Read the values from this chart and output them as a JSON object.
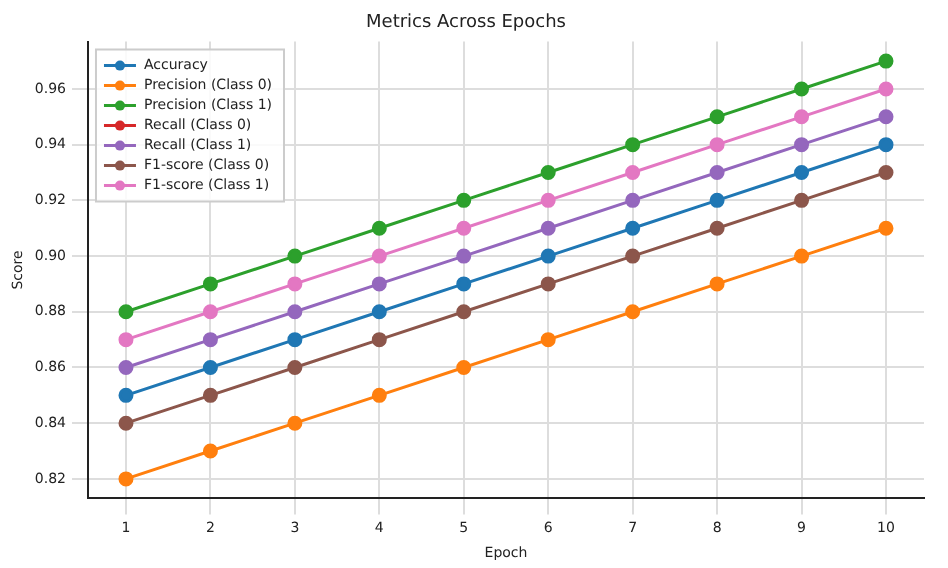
{
  "chart_data": {
    "type": "line",
    "title": "Metrics Across Epochs",
    "xlabel": "Epoch",
    "ylabel": "Score",
    "x": [
      1,
      2,
      3,
      4,
      5,
      6,
      7,
      8,
      9,
      10
    ],
    "xlim": [
      0.55,
      10.45
    ],
    "xticks": [
      1,
      2,
      3,
      4,
      5,
      6,
      7,
      8,
      9,
      10
    ],
    "ylim": [
      0.813,
      0.977
    ],
    "yticks": [
      0.82,
      0.84,
      0.86,
      0.88,
      {
        "value": 0.9,
        "label": "0.90"
      },
      0.92,
      0.94,
      0.96
    ],
    "grid": true,
    "legend": "top left",
    "marker": "circle",
    "line_style": "solid",
    "series": [
      {
        "name": "Accuracy",
        "color": "#1f77b4",
        "values": [
          0.85,
          0.86,
          0.87,
          0.88,
          0.89,
          0.9,
          0.91,
          0.92,
          0.93,
          0.94
        ]
      },
      {
        "name": "Precision (Class 0)",
        "color": "#ff7f0e",
        "values": [
          0.82,
          0.83,
          0.84,
          0.85,
          0.86,
          0.87,
          0.88,
          0.89,
          0.9,
          0.91
        ]
      },
      {
        "name": "Precision (Class 1)",
        "color": "#2ca02c",
        "values": [
          0.88,
          0.89,
          0.9,
          0.91,
          0.92,
          0.93,
          0.94,
          0.95,
          0.96,
          0.97
        ]
      },
      {
        "name": "Recall (Class 0)",
        "color": "#d62728",
        "values": [
          null,
          null,
          null,
          null,
          null,
          null,
          null,
          null,
          null,
          null
        ]
      },
      {
        "name": "Recall (Class 1)",
        "color": "#9467bd",
        "values": [
          0.86,
          0.87,
          0.88,
          0.89,
          0.9,
          0.91,
          0.92,
          0.93,
          0.94,
          0.95
        ]
      },
      {
        "name": "F1-score (Class 0)",
        "color": "#8c564b",
        "values": [
          0.84,
          0.85,
          0.86,
          0.87,
          0.88,
          0.89,
          0.9,
          0.91,
          0.92,
          0.93
        ]
      },
      {
        "name": "F1-score (Class 1)",
        "color": "#e377c2",
        "values": [
          0.87,
          0.88,
          0.89,
          0.9,
          0.91,
          0.92,
          0.93,
          0.94,
          0.95,
          0.96
        ]
      }
    ]
  }
}
